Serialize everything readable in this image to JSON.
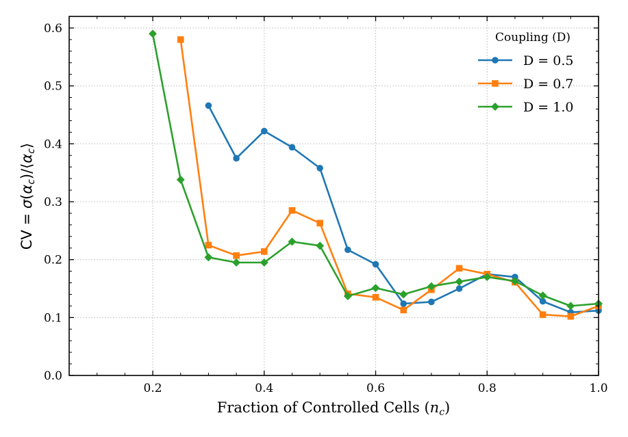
{
  "chart_data": {
    "type": "line",
    "title": "",
    "xlabel_text": "Fraction of Controlled Cells (",
    "xlabel_var": "n",
    "xlabel_sub": "c",
    "xlabel_end": ")",
    "ylabel_parts": {
      "lead": "CV = ",
      "sigma": "σ",
      "open": "(",
      "alpha": "α",
      "sub": "c",
      "mid": ")/⟨",
      "alpha2": "α",
      "sub2": "c",
      "close": "⟩"
    },
    "xlim": [
      0.05,
      1.0
    ],
    "ylim": [
      0.0,
      0.62
    ],
    "xticks": [
      0.2,
      0.4,
      0.6,
      0.8,
      1.0
    ],
    "xtick_labels": [
      "0.2",
      "0.4",
      "0.6",
      "0.8",
      "1.0"
    ],
    "yticks": [
      0.0,
      0.1,
      0.2,
      0.3,
      0.4,
      0.5,
      0.6
    ],
    "ytick_labels": [
      "0.0",
      "0.1",
      "0.2",
      "0.3",
      "0.4",
      "0.5",
      "0.6"
    ],
    "grid": true,
    "legend_title": "Coupling (D)",
    "legend_position": "top-right",
    "series": [
      {
        "name": "D = 0.5",
        "color": "#1f77b4",
        "marker": "circle",
        "x": [
          0.3,
          0.35,
          0.4,
          0.45,
          0.5,
          0.55,
          0.6,
          0.65,
          0.7,
          0.75,
          0.8,
          0.85,
          0.9,
          0.95,
          1.0
        ],
        "y": [
          0.466,
          0.375,
          0.422,
          0.394,
          0.358,
          0.217,
          0.192,
          0.124,
          0.127,
          0.15,
          0.175,
          0.17,
          0.128,
          0.109,
          0.112
        ]
      },
      {
        "name": "D = 0.7",
        "color": "#ff7f0e",
        "marker": "square",
        "x": [
          0.25,
          0.3,
          0.35,
          0.4,
          0.45,
          0.5,
          0.55,
          0.6,
          0.65,
          0.7,
          0.75,
          0.8,
          0.85,
          0.9,
          0.95,
          1.0
        ],
        "y": [
          0.58,
          0.225,
          0.207,
          0.214,
          0.285,
          0.263,
          0.141,
          0.135,
          0.113,
          0.148,
          0.185,
          0.175,
          0.161,
          0.105,
          0.102,
          0.12
        ]
      },
      {
        "name": "D = 1.0",
        "color": "#2ca02c",
        "marker": "diamond",
        "x": [
          0.2,
          0.25,
          0.3,
          0.35,
          0.4,
          0.45,
          0.5,
          0.55,
          0.6,
          0.65,
          0.7,
          0.75,
          0.8,
          0.85,
          0.9,
          0.95,
          1.0
        ],
        "y": [
          0.59,
          0.338,
          0.204,
          0.195,
          0.195,
          0.231,
          0.224,
          0.137,
          0.151,
          0.14,
          0.154,
          0.162,
          0.17,
          0.163,
          0.138,
          0.12,
          0.124
        ]
      }
    ]
  }
}
